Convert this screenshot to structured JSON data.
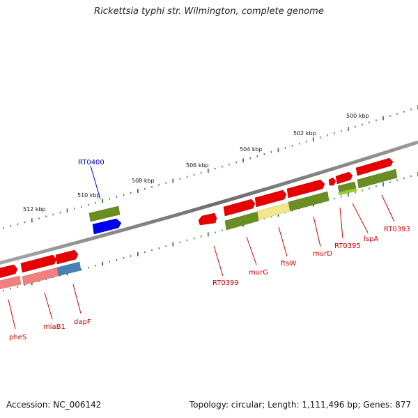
{
  "header": {
    "title": "Rickettsia typhi str. Wilmington, complete genome"
  },
  "footer": {
    "accession": "Accession: NC_006142",
    "summary": "Topology: circular; Length: 1,111,496 bp; Genes: 877"
  },
  "map": {
    "ticks": [
      "500 kbp",
      "502 kbp",
      "504 kbp",
      "506 kbp",
      "508 kbp",
      "510 kbp",
      "512 kbp"
    ],
    "gene_labels": [
      {
        "text": "RT0400",
        "color": "#0000cc"
      },
      {
        "text": "pheS",
        "color": "#cc0000"
      },
      {
        "text": "miaB1",
        "color": "#cc0000"
      },
      {
        "text": "dapF",
        "color": "#cc0000"
      },
      {
        "text": "RT0399",
        "color": "#cc0000"
      },
      {
        "text": "murG",
        "color": "#cc0000"
      },
      {
        "text": "ftsW",
        "color": "#cc0000"
      },
      {
        "text": "murD",
        "color": "#cc0000"
      },
      {
        "text": "RT0395",
        "color": "#cc0000"
      },
      {
        "text": "lspA",
        "color": "#cc0000"
      },
      {
        "text": "RT0393",
        "color": "#cc0000"
      }
    ],
    "colors": {
      "backbone": "#7a7a7a",
      "tick_marks": "#1e7a1e",
      "forward_cds": "#e60000",
      "olive_feature": "#6b8e23",
      "blue_feature": "#0000ee",
      "pale_yellow_feature": "#f0e68c",
      "steel_blue_feature": "#4682b4",
      "pink_feature": "#f08080",
      "lime_feature": "#9acd32"
    }
  }
}
